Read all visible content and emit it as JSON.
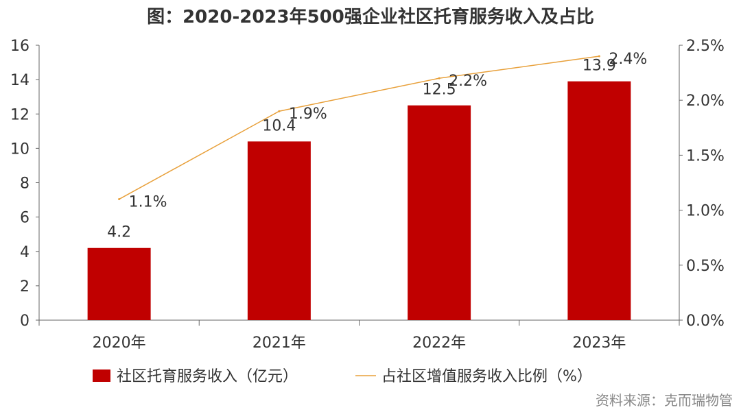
{
  "title": "图：2020-2023年500强企业社区托育服务收入及占比",
  "source": "资料来源：克而瑞物管",
  "colors": {
    "bar": "#C00000",
    "line": "#E8A03A",
    "axis": "#666666",
    "text": "#333333"
  },
  "chart_data": {
    "type": "bar",
    "categories": [
      "2020年",
      "2021年",
      "2022年",
      "2023年"
    ],
    "series": [
      {
        "name": "社区托育服务收入（亿元）",
        "type": "bar",
        "axis": "left",
        "values": [
          4.2,
          10.4,
          12.5,
          13.9
        ],
        "labels": [
          "4.2",
          "10.4",
          "12.5",
          "13.9"
        ]
      },
      {
        "name": "占社区增值服务收入比例（%）",
        "type": "line",
        "axis": "right",
        "values": [
          1.1,
          1.9,
          2.2,
          2.4
        ],
        "labels": [
          "1.1%",
          "1.9%",
          "2.2%",
          "2.4%"
        ]
      }
    ],
    "yleft": {
      "lim": [
        0,
        16
      ],
      "ticks": [
        "0",
        "2",
        "4",
        "6",
        "8",
        "10",
        "12",
        "14",
        "16"
      ]
    },
    "yright": {
      "lim": [
        0,
        2.5
      ],
      "ticks": [
        "0.0%",
        "0.5%",
        "1.0%",
        "1.5%",
        "2.0%",
        "2.5%"
      ]
    },
    "grid": false,
    "legend": "bottom"
  }
}
